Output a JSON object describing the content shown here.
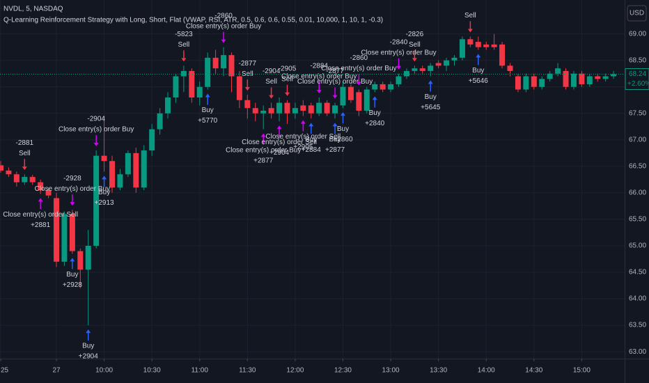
{
  "chart_data": {
    "type": "candlestick",
    "symbol": "NVDL, 5, NASDAQ",
    "title": "Q-Learning Reinforcement Strategy with Long, Short, Flat (VWAP, RSI, ATR, 0.5, 0.6, 0.6, 0.55, 0.01, 10,000, 1, 10, 1, -0.3)",
    "currency": "USD",
    "up_color": "#089981",
    "down_color": "#f23645",
    "categories": [
      "25",
      null,
      null,
      null,
      null,
      null,
      null,
      "27",
      null,
      null,
      null,
      null,
      null,
      "10:00",
      null,
      null,
      null,
      null,
      null,
      "10:30",
      null,
      null,
      null,
      null,
      null,
      "11:00",
      null,
      null,
      null,
      null,
      null,
      "11:30",
      null,
      null,
      null,
      null,
      null,
      "12:00",
      null,
      null,
      null,
      null,
      null,
      "12:30",
      null,
      null,
      null,
      null,
      null,
      "13:00",
      null,
      null,
      null,
      null,
      null,
      "13:30",
      null,
      null,
      null,
      null,
      null,
      "14:00",
      null,
      null,
      null,
      null,
      null,
      "14:30",
      null,
      null,
      null,
      null,
      null,
      "15:00",
      null,
      null,
      null,
      null
    ],
    "open": [
      66.52,
      66.42,
      66.35,
      66.2,
      66.3,
      66.2,
      66.05,
      65.9,
      64.7,
      65.6,
      64.9,
      64.55,
      65.0,
      66.7,
      66.6,
      66.1,
      66.35,
      66.75,
      66.1,
      66.8,
      67.2,
      67.5,
      67.8,
      68.2,
      68.3,
      67.8,
      68.0,
      68.55,
      68.35,
      68.6,
      68.2,
      67.75,
      67.6,
      67.5,
      67.6,
      67.5,
      67.7,
      67.5,
      67.65,
      67.65,
      67.5,
      67.7,
      67.5,
      67.65,
      68.0,
      67.9,
      67.55,
      67.95,
      68.05,
      67.95,
      68.05,
      68.2,
      68.3,
      68.35,
      68.3,
      68.45,
      68.4,
      68.5,
      68.55,
      68.9,
      68.85,
      68.8,
      68.8,
      68.8,
      68.4,
      68.2,
      67.95,
      68.2,
      68.0,
      68.15,
      68.25,
      68.3,
      68.0,
      68.25,
      68.05,
      68.2,
      68.15,
      68.2
    ],
    "high": [
      66.6,
      66.48,
      66.4,
      66.35,
      66.34,
      66.25,
      66.1,
      66.0,
      65.65,
      65.68,
      64.95,
      65.3,
      66.8,
      67.45,
      66.7,
      66.45,
      66.8,
      66.85,
      66.9,
      67.3,
      67.6,
      67.9,
      68.25,
      68.4,
      68.35,
      68.1,
      68.65,
      68.7,
      68.75,
      68.65,
      68.3,
      67.85,
      67.7,
      67.65,
      67.7,
      67.8,
      67.75,
      67.7,
      67.75,
      67.7,
      67.8,
      67.75,
      67.7,
      68.1,
      68.05,
      67.95,
      68.0,
      68.1,
      68.1,
      68.1,
      68.25,
      68.35,
      68.4,
      68.4,
      68.45,
      68.5,
      68.55,
      68.6,
      68.95,
      68.95,
      68.95,
      68.85,
      69.0,
      68.85,
      68.45,
      68.25,
      68.25,
      68.25,
      68.2,
      68.3,
      68.45,
      68.35,
      68.3,
      68.3,
      68.25,
      68.25,
      68.25,
      68.3
    ],
    "low": [
      66.38,
      66.3,
      66.12,
      66.15,
      66.15,
      65.98,
      65.9,
      64.6,
      64.62,
      64.85,
      64.2,
      63.5,
      64.95,
      66.4,
      66.0,
      66.05,
      66.3,
      66.0,
      66.05,
      66.7,
      67.1,
      67.4,
      67.7,
      67.9,
      67.7,
      67.65,
      67.95,
      68.25,
      68.2,
      67.9,
      67.6,
      67.4,
      67.35,
      67.2,
      67.4,
      67.35,
      67.3,
      67.4,
      67.45,
      67.4,
      67.45,
      67.45,
      67.4,
      67.6,
      67.7,
      67.45,
      67.5,
      67.9,
      67.9,
      67.9,
      68.0,
      68.15,
      68.25,
      68.25,
      68.2,
      68.35,
      68.3,
      68.4,
      68.5,
      68.75,
      68.7,
      68.7,
      68.7,
      68.35,
      68.2,
      67.9,
      67.9,
      67.95,
      67.95,
      68.1,
      68.2,
      67.95,
      67.95,
      68.0,
      68.0,
      68.1,
      68.1,
      68.15
    ],
    "close": [
      66.42,
      66.35,
      66.2,
      66.3,
      66.2,
      66.05,
      65.95,
      64.7,
      65.6,
      64.9,
      64.55,
      65.0,
      66.7,
      66.6,
      66.1,
      66.35,
      66.75,
      66.1,
      66.8,
      67.2,
      67.5,
      67.8,
      68.2,
      68.3,
      67.8,
      68.0,
      68.55,
      68.35,
      68.6,
      68.2,
      67.75,
      67.6,
      67.5,
      67.55,
      67.5,
      67.7,
      67.5,
      67.6,
      67.55,
      67.5,
      67.7,
      67.5,
      67.65,
      68.0,
      67.75,
      67.55,
      67.95,
      68.05,
      67.95,
      68.05,
      68.2,
      68.3,
      68.35,
      68.3,
      68.4,
      68.4,
      68.5,
      68.55,
      68.9,
      68.8,
      68.75,
      68.75,
      68.75,
      68.4,
      68.3,
      67.95,
      68.2,
      68.0,
      68.15,
      68.25,
      68.35,
      68.0,
      68.25,
      68.05,
      68.2,
      68.15,
      68.2,
      68.24
    ],
    "ylim": [
      62.87,
      69.64
    ],
    "yticks": [
      {
        "value": 63,
        "label": "63.00"
      },
      {
        "value": 63.5,
        "label": "63.50"
      },
      {
        "value": 64,
        "label": "64.00"
      },
      {
        "value": 64.5,
        "label": "64.50"
      },
      {
        "value": 65,
        "label": "65.00"
      },
      {
        "value": 65.5,
        "label": "65.50"
      },
      {
        "value": 66,
        "label": "66.00"
      },
      {
        "value": 66.5,
        "label": "66.50"
      },
      {
        "value": 67,
        "label": "67.00"
      },
      {
        "value": 67.5,
        "label": "67.50"
      },
      {
        "value": 68,
        "label": "68.00"
      },
      {
        "value": 68.5,
        "label": "68.50"
      },
      {
        "value": 69,
        "label": "69.00"
      }
    ],
    "last_price": 68.24,
    "change": {
      "value": 2.6,
      "label": "+2.60%"
    },
    "annotations": [
      {
        "index": 3,
        "side": "above",
        "lines": [
          "-2881",
          "Sell"
        ]
      },
      {
        "index": 5,
        "side": "below",
        "lines": [
          "Close entry(s) order Sell",
          "+2881"
        ]
      },
      {
        "index": 9,
        "side": "above",
        "lines": [
          "-2928",
          "Close entry(s) order Buy"
        ]
      },
      {
        "index": 9,
        "side": "below",
        "lines": [
          "Buy",
          "+2928"
        ]
      },
      {
        "index": 11,
        "side": "below",
        "lines": [
          "Buy",
          "+2904"
        ]
      },
      {
        "index": 13,
        "side": "below",
        "lines": [
          "Buy",
          "+2913"
        ]
      },
      {
        "index": 12,
        "side": "above",
        "lines": [
          "-2904",
          "Close entry(s) order Buy"
        ]
      },
      {
        "index": 23,
        "side": "above",
        "lines": [
          "-5823",
          "Sell"
        ]
      },
      {
        "index": 26,
        "side": "below",
        "lines": [
          "Buy",
          "+5770"
        ]
      },
      {
        "index": 28,
        "side": "above",
        "lines": [
          "-2860",
          "Close entry(s) order Buy"
        ]
      },
      {
        "index": 31,
        "side": "above",
        "lines": [
          "-2877",
          "Sell"
        ]
      },
      {
        "index": 33,
        "side": "below",
        "lines": [
          "Close entry(s) order Buy",
          "+2877"
        ]
      },
      {
        "index": 34,
        "side": "above",
        "lines": [
          "-2904",
          "Sell"
        ]
      },
      {
        "index": 35,
        "side": "below",
        "lines": [
          "Close entry(s) order Sell",
          "+2904"
        ]
      },
      {
        "index": 36,
        "side": "above",
        "lines": [
          "-2905",
          "Sell"
        ]
      },
      {
        "index": 38,
        "side": "below",
        "lines": [
          "Close entry(s) order Sell",
          "+2905"
        ]
      },
      {
        "index": 40,
        "side": "above",
        "lines": [
          "-2884",
          "Close entry(s) order Buy"
        ]
      },
      {
        "index": 39,
        "side": "below",
        "lines": [
          "Buy",
          "+2884"
        ]
      },
      {
        "index": 42,
        "side": "above",
        "lines": [
          "-2877",
          "Close entry(s) order Buy"
        ]
      },
      {
        "index": 42,
        "side": "below",
        "lines": [
          "Buy",
          "+2877"
        ]
      },
      {
        "index": 45,
        "side": "above",
        "lines": [
          "-2860",
          "Close entry(s) order Buy"
        ]
      },
      {
        "index": 43,
        "side": "below",
        "lines": [
          "Buy",
          "+2860"
        ]
      },
      {
        "index": 50,
        "side": "above",
        "lines": [
          "-2840",
          "Close entry(s) order Buy"
        ]
      },
      {
        "index": 47,
        "side": "below",
        "lines": [
          "Buy",
          "+2840"
        ]
      },
      {
        "index": 52,
        "side": "above",
        "lines": [
          "-2826",
          "Sell"
        ]
      },
      {
        "index": 54,
        "side": "below",
        "lines": [
          "Buy",
          "+5645"
        ]
      },
      {
        "index": 59,
        "side": "above",
        "lines": [
          "Sell"
        ]
      },
      {
        "index": 60,
        "side": "below",
        "lines": [
          "Buy",
          "+5646"
        ]
      }
    ]
  }
}
